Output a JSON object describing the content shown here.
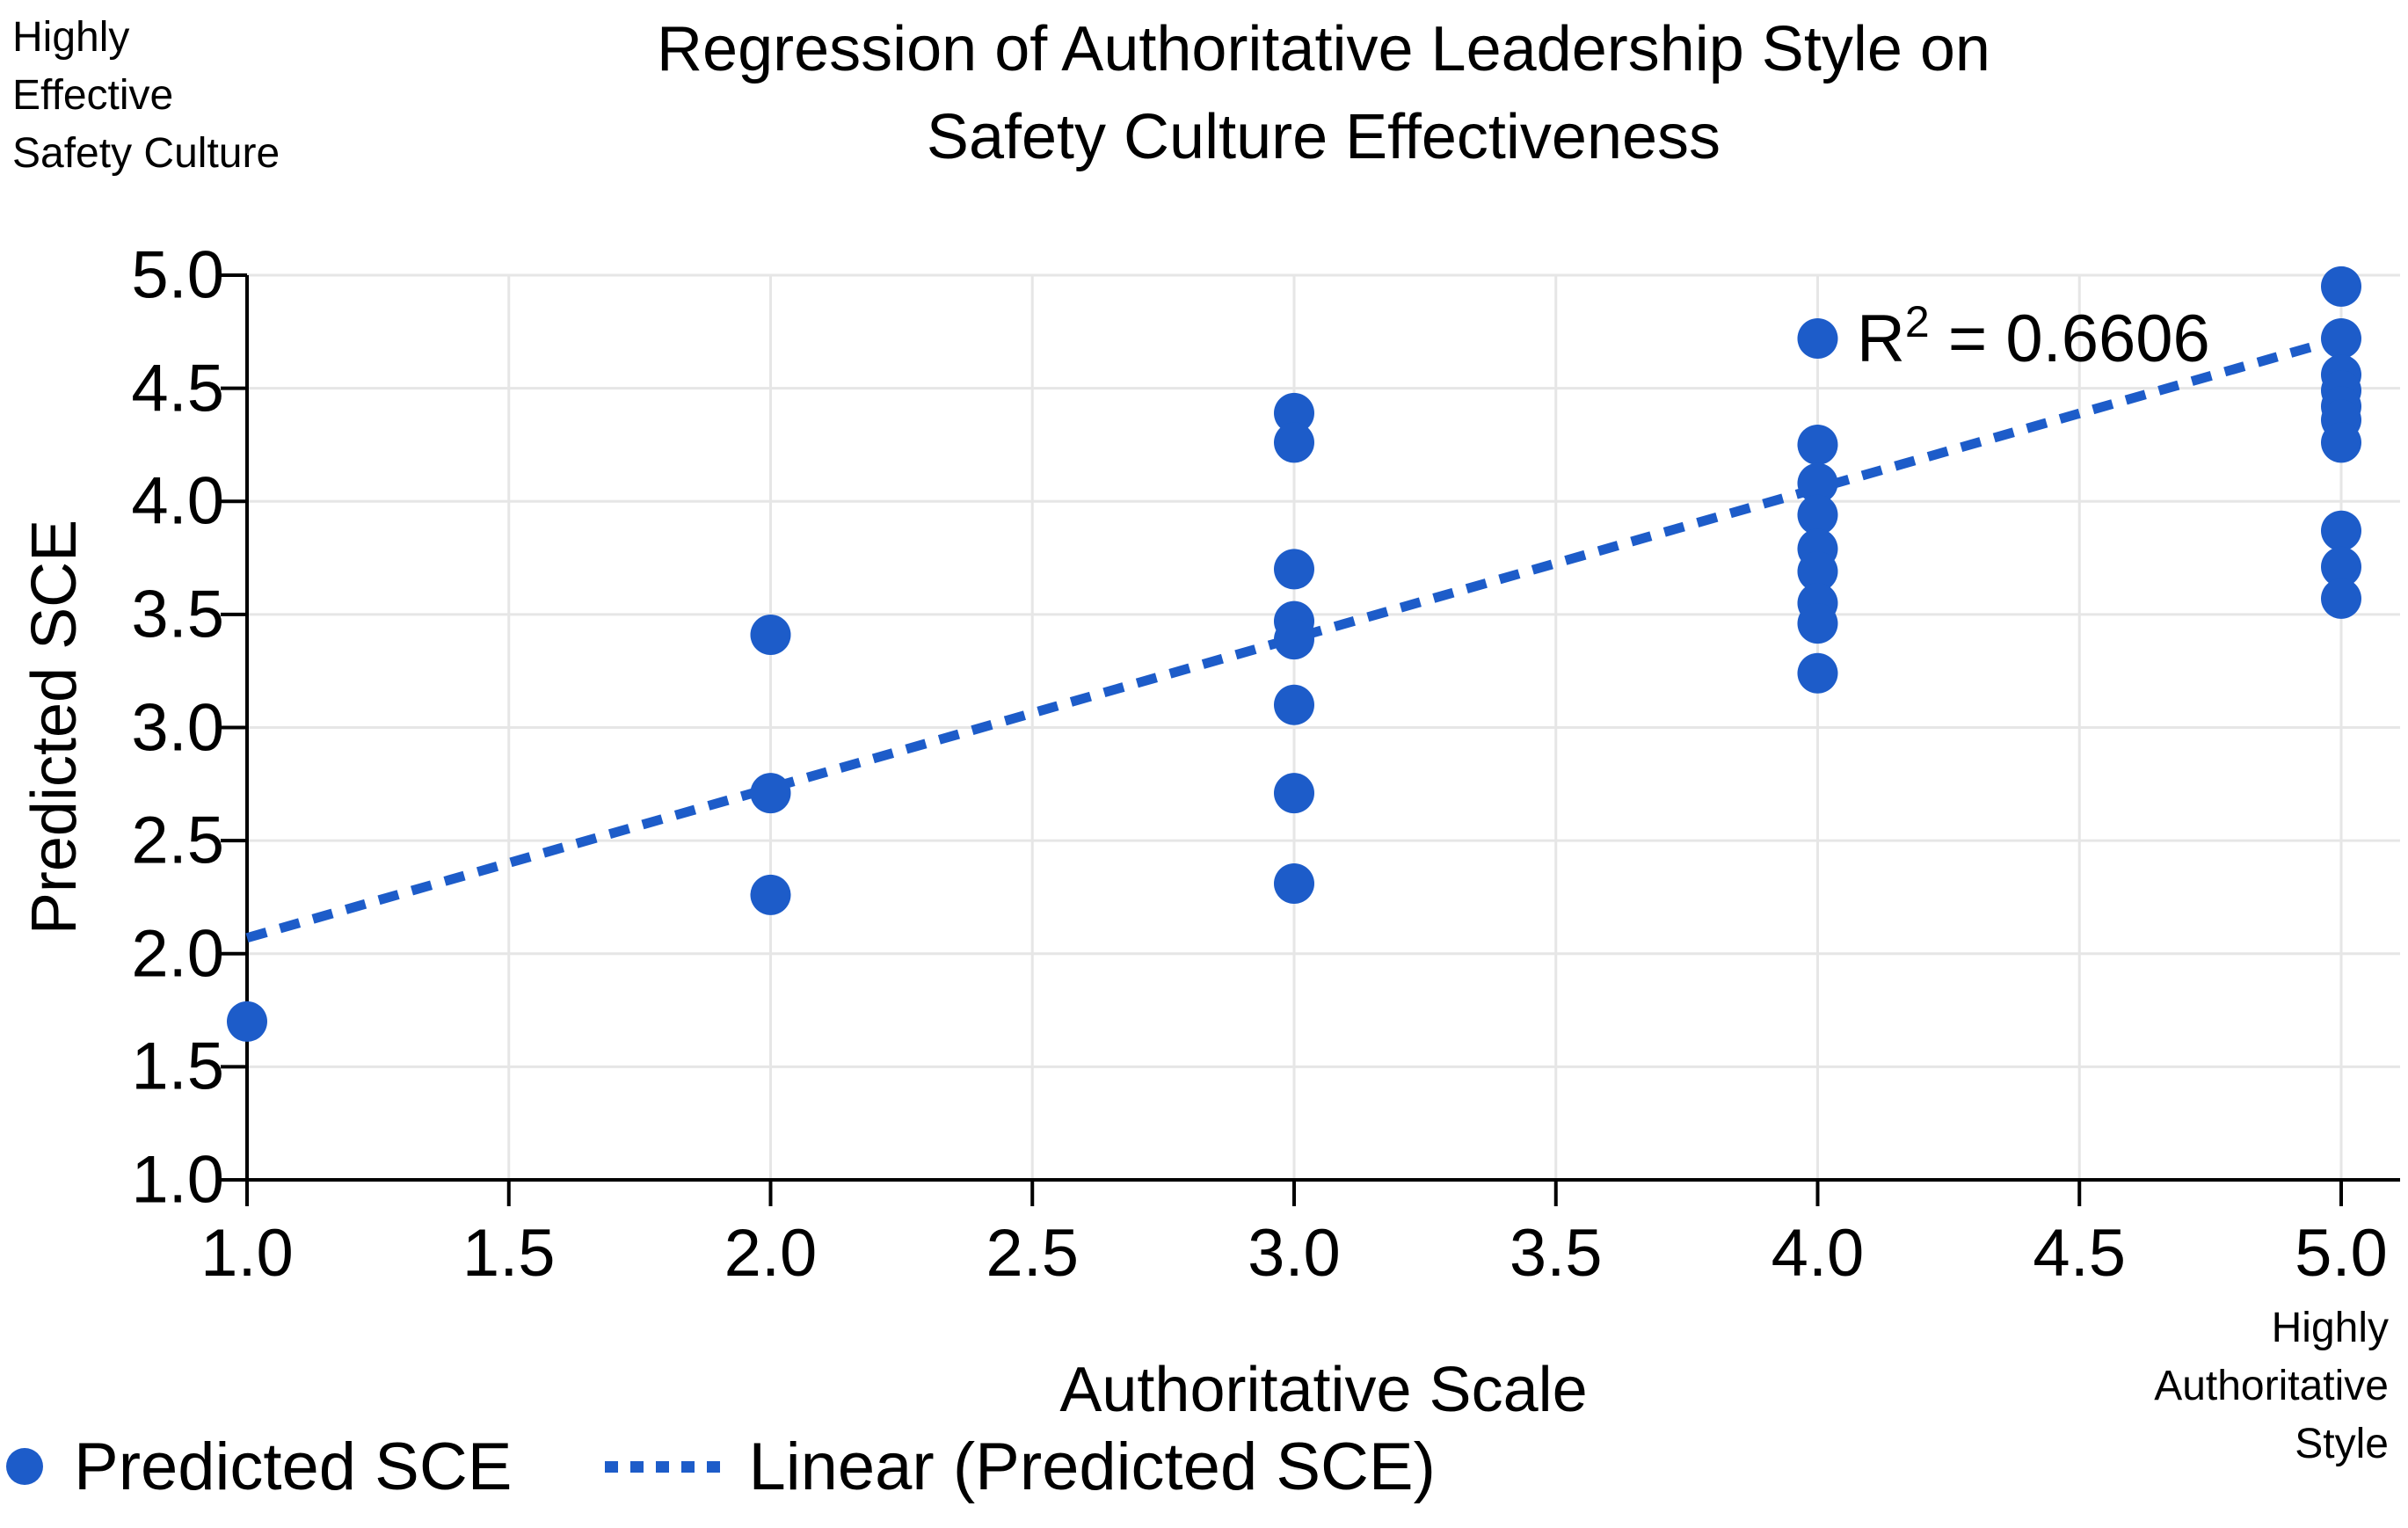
{
  "chart": {
    "title_line1": "Regression of Authoritative Leadership Style on",
    "title_line2": "Safety Culture Effectiveness",
    "y_axis_title": "Predicted SCE",
    "x_axis_title": "Authoritative Scale",
    "y_high_annotation": "Highly\nEffective\nSafety Culture",
    "x_high_annotation": "Highly\nAuthoritative\nStyle",
    "r2": {
      "prefix": "R",
      "sup": "2",
      "rest": " = 0.6606"
    }
  },
  "legend": [
    {
      "label": "Predicted SCE",
      "swatch": "dot"
    },
    {
      "label": "Linear (Predicted SCE)",
      "swatch": "dashed-line"
    }
  ],
  "colors": {
    "series": "#1d5cc9",
    "grid": "#e6e6e6",
    "axis": "#000000",
    "text": "#000000",
    "background": "#ffffff"
  },
  "chart_data": {
    "type": "scatter",
    "title": "Regression of Authoritative Leadership Style on Safety Culture Effectiveness",
    "xlabel": "Authoritative Scale",
    "ylabel": "Predicted SCE",
    "x_high_label": "Highly Authoritative Style",
    "y_high_label": "Highly Effective Safety Culture",
    "xlim": [
      1.0,
      5.105
    ],
    "ylim": [
      1.0,
      5.0
    ],
    "x_ticks": [
      1.0,
      1.5,
      2.0,
      2.5,
      3.0,
      3.5,
      4.0,
      4.5,
      5.0
    ],
    "y_ticks": [
      1.0,
      1.5,
      2.0,
      2.5,
      3.0,
      3.5,
      4.0,
      4.5,
      5.0
    ],
    "x_tick_labels": [
      "1.0",
      "1.5",
      "2.0",
      "2.5",
      "3.0",
      "3.5",
      "4.0",
      "4.5",
      "5.0"
    ],
    "y_tick_labels": [
      "1.0",
      "1.5",
      "2.0",
      "2.5",
      "3.0",
      "3.5",
      "4.0",
      "4.5",
      "5.0"
    ],
    "grid": true,
    "legend_position": "bottom-left",
    "r_squared": 0.6606,
    "series": [
      {
        "name": "Predicted SCE",
        "type": "scatter",
        "points": [
          [
            1,
            1.7
          ],
          [
            2,
            3.41
          ],
          [
            2,
            2.71
          ],
          [
            2,
            2.26
          ],
          [
            3,
            4.39
          ],
          [
            3,
            4.26
          ],
          [
            3,
            3.7
          ],
          [
            3,
            3.47
          ],
          [
            3,
            3.39
          ],
          [
            3,
            3.1
          ],
          [
            3,
            2.71
          ],
          [
            3,
            2.31
          ],
          [
            4,
            4.72
          ],
          [
            4,
            4.25
          ],
          [
            4,
            4.08
          ],
          [
            4,
            3.94
          ],
          [
            4,
            3.79
          ],
          [
            4,
            3.69
          ],
          [
            4,
            3.55
          ],
          [
            4,
            3.46
          ],
          [
            4,
            3.24
          ],
          [
            5,
            4.95
          ],
          [
            5,
            4.72
          ],
          [
            5,
            4.56
          ],
          [
            5,
            4.49
          ],
          [
            5,
            4.42
          ],
          [
            5,
            4.36
          ],
          [
            5,
            4.26
          ],
          [
            5,
            3.87
          ],
          [
            5,
            3.71
          ],
          [
            5,
            3.57
          ]
        ]
      }
    ],
    "trendline": {
      "name": "Linear (Predicted SCE)",
      "style": "dashed",
      "x1": 1.0,
      "y1": 2.07,
      "x2": 5.0,
      "y2": 4.72
    }
  }
}
